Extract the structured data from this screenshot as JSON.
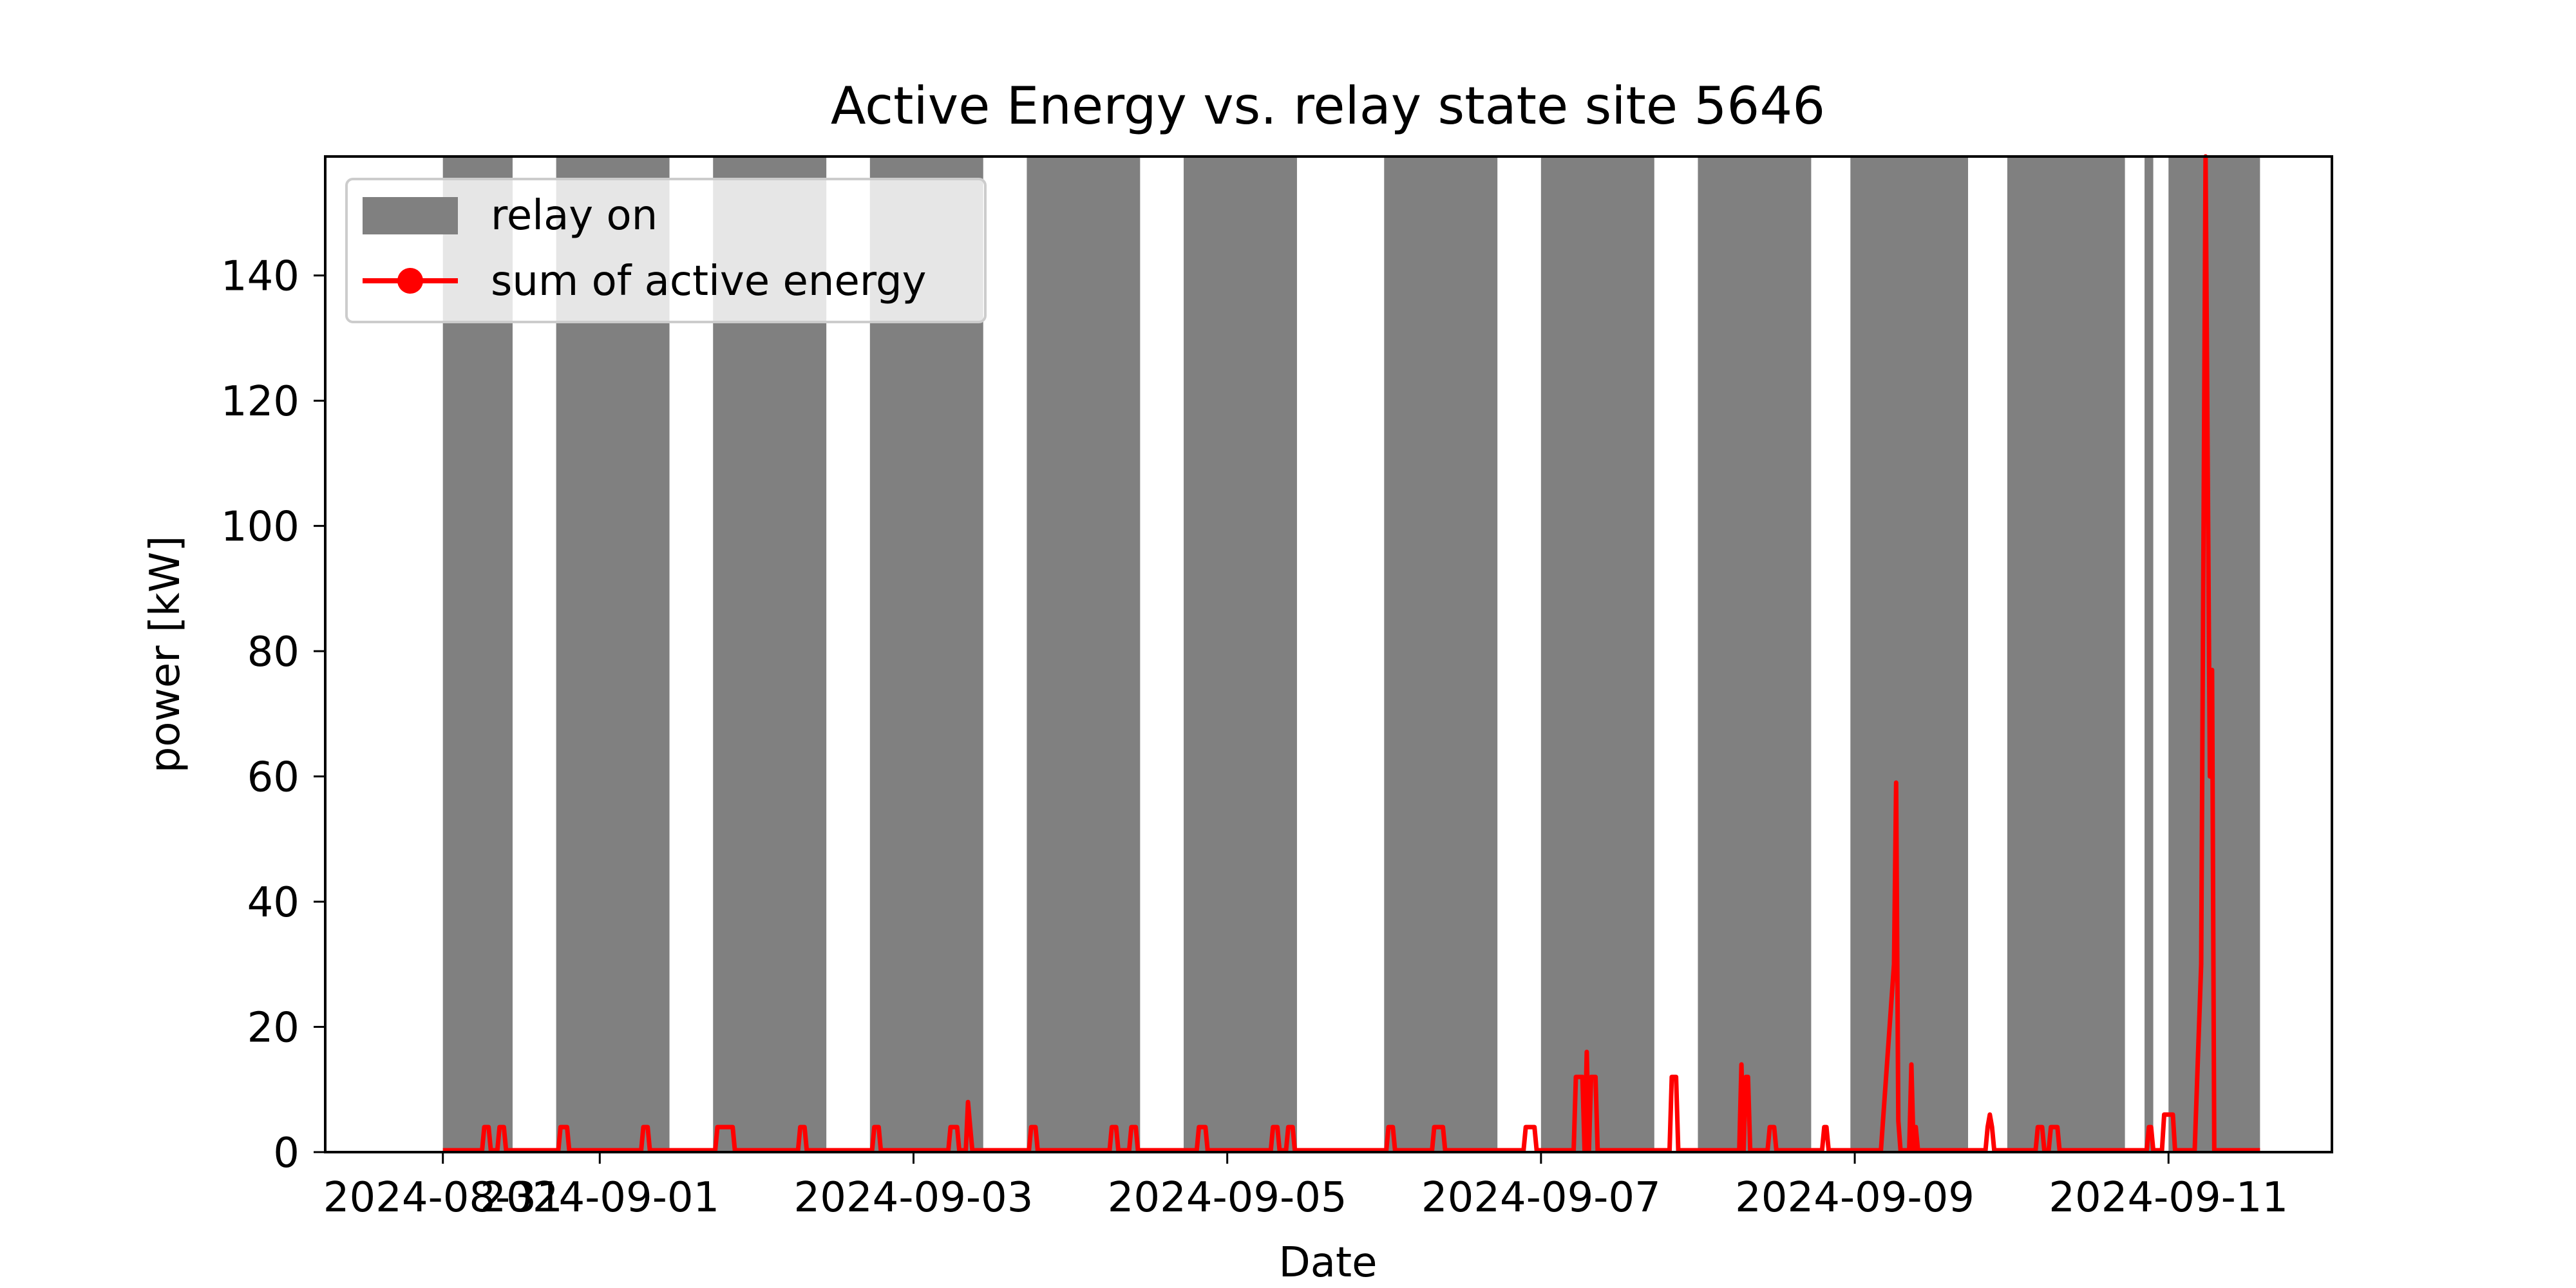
{
  "chart_data": {
    "type": "line",
    "title": "Active Energy vs. relay state site 5646",
    "xlabel": "Date",
    "ylabel": "power [kW]",
    "xlim": [
      "2024-08-30T06:00",
      "2024-09-12T01:00"
    ],
    "ylim": [
      0,
      159
    ],
    "x_ticks": [
      "2024-08-31",
      "2024-09-01",
      "2024-09-03",
      "2024-09-05",
      "2024-09-07",
      "2024-09-09",
      "2024-09-11"
    ],
    "y_ticks": [
      0,
      20,
      40,
      60,
      80,
      100,
      120,
      140
    ],
    "grid": false,
    "legend": {
      "position": "upper left",
      "entries": [
        "relay on",
        "sum of active energy"
      ]
    },
    "colors": {
      "relay_on": "#808080",
      "energy": "#ff0000"
    },
    "relay_on_intervals": [
      [
        "2024-08-31T00:00",
        "2024-08-31T10:40"
      ],
      [
        "2024-08-31T17:20",
        "2024-09-01T10:40"
      ],
      [
        "2024-09-01T17:20",
        "2024-09-02T10:40"
      ],
      [
        "2024-09-02T17:20",
        "2024-09-03T10:40"
      ],
      [
        "2024-09-03T17:20",
        "2024-09-04T10:40"
      ],
      [
        "2024-09-04T17:20",
        "2024-09-05T10:40"
      ],
      [
        "2024-09-06T00:00",
        "2024-09-06T17:20"
      ],
      [
        "2024-09-07T00:00",
        "2024-09-07T17:20"
      ],
      [
        "2024-09-08T00:00",
        "2024-09-08T17:20"
      ],
      [
        "2024-09-08T23:20",
        "2024-09-09T17:20"
      ],
      [
        "2024-09-09T23:20",
        "2024-09-10T17:20"
      ],
      [
        "2024-09-10T20:20",
        "2024-09-10T21:40"
      ],
      [
        "2024-09-11T00:00",
        "2024-09-11T14:00"
      ]
    ],
    "series": [
      {
        "name": "sum of active energy",
        "points": [
          [
            "2024-08-31T00:00",
            0.3
          ],
          [
            "2024-08-31T06:00",
            0.3
          ],
          [
            "2024-08-31T06:20",
            4
          ],
          [
            "2024-08-31T07:00",
            4
          ],
          [
            "2024-08-31T07:20",
            0.3
          ],
          [
            "2024-08-31T08:20",
            0.3
          ],
          [
            "2024-08-31T08:40",
            4
          ],
          [
            "2024-08-31T09:20",
            4
          ],
          [
            "2024-08-31T09:40",
            0.3
          ],
          [
            "2024-08-31T17:40",
            0.3
          ],
          [
            "2024-08-31T18:00",
            4
          ],
          [
            "2024-08-31T19:00",
            4
          ],
          [
            "2024-08-31T19:20",
            0.3
          ],
          [
            "2024-09-01T06:20",
            0.3
          ],
          [
            "2024-09-01T06:40",
            4
          ],
          [
            "2024-09-01T07:20",
            4
          ],
          [
            "2024-09-01T07:40",
            0.3
          ],
          [
            "2024-09-01T17:40",
            0.3
          ],
          [
            "2024-09-01T18:00",
            4
          ],
          [
            "2024-09-01T20:20",
            4
          ],
          [
            "2024-09-01T20:40",
            0.3
          ],
          [
            "2024-09-02T06:20",
            0.3
          ],
          [
            "2024-09-02T06:40",
            4
          ],
          [
            "2024-09-02T07:20",
            4
          ],
          [
            "2024-09-02T07:40",
            0.3
          ],
          [
            "2024-09-02T17:40",
            0.3
          ],
          [
            "2024-09-02T18:00",
            4
          ],
          [
            "2024-09-02T18:40",
            4
          ],
          [
            "2024-09-02T19:00",
            0.3
          ],
          [
            "2024-09-03T05:20",
            0.3
          ],
          [
            "2024-09-03T05:40",
            4
          ],
          [
            "2024-09-03T06:40",
            4
          ],
          [
            "2024-09-03T07:00",
            0.3
          ],
          [
            "2024-09-03T08:00",
            0.3
          ],
          [
            "2024-09-03T08:20",
            8
          ],
          [
            "2024-09-03T08:40",
            4
          ],
          [
            "2024-09-03T09:00",
            0.3
          ],
          [
            "2024-09-03T17:40",
            0.3
          ],
          [
            "2024-09-03T18:00",
            4
          ],
          [
            "2024-09-03T18:40",
            4
          ],
          [
            "2024-09-03T19:00",
            0.3
          ],
          [
            "2024-09-04T06:00",
            0.3
          ],
          [
            "2024-09-04T06:20",
            4
          ],
          [
            "2024-09-04T07:00",
            4
          ],
          [
            "2024-09-04T07:20",
            0.3
          ],
          [
            "2024-09-04T09:00",
            0.3
          ],
          [
            "2024-09-04T09:20",
            4
          ],
          [
            "2024-09-04T10:00",
            4
          ],
          [
            "2024-09-04T10:20",
            0.3
          ],
          [
            "2024-09-04T19:20",
            0.3
          ],
          [
            "2024-09-04T19:40",
            4
          ],
          [
            "2024-09-04T20:40",
            4
          ],
          [
            "2024-09-04T21:00",
            0.3
          ],
          [
            "2024-09-05T06:40",
            0.3
          ],
          [
            "2024-09-05T07:00",
            4
          ],
          [
            "2024-09-05T07:40",
            4
          ],
          [
            "2024-09-05T08:00",
            0.3
          ],
          [
            "2024-09-05T09:00",
            0.3
          ],
          [
            "2024-09-05T09:20",
            4
          ],
          [
            "2024-09-05T10:00",
            4
          ],
          [
            "2024-09-05T10:20",
            0.3
          ],
          [
            "2024-09-06T00:20",
            0.3
          ],
          [
            "2024-09-06T00:40",
            4
          ],
          [
            "2024-09-06T01:20",
            4
          ],
          [
            "2024-09-06T01:40",
            0.3
          ],
          [
            "2024-09-06T07:20",
            0.3
          ],
          [
            "2024-09-06T07:40",
            4
          ],
          [
            "2024-09-06T09:00",
            4
          ],
          [
            "2024-09-06T09:20",
            0.3
          ],
          [
            "2024-09-06T21:20",
            0.3
          ],
          [
            "2024-09-06T21:40",
            4
          ],
          [
            "2024-09-06T23:00",
            4
          ],
          [
            "2024-09-06T23:20",
            0.3
          ],
          [
            "2024-09-07T05:00",
            0.3
          ],
          [
            "2024-09-07T05:20",
            12
          ],
          [
            "2024-09-07T06:20",
            12
          ],
          [
            "2024-09-07T06:40",
            0.3
          ],
          [
            "2024-09-07T07:00",
            16
          ],
          [
            "2024-09-07T07:20",
            0.3
          ],
          [
            "2024-09-07T07:40",
            12
          ],
          [
            "2024-09-07T08:20",
            12
          ],
          [
            "2024-09-07T08:40",
            0.3
          ],
          [
            "2024-09-07T19:40",
            0.3
          ],
          [
            "2024-09-07T20:00",
            12
          ],
          [
            "2024-09-07T20:40",
            12
          ],
          [
            "2024-09-07T21:00",
            0.3
          ],
          [
            "2024-09-08T06:20",
            0.3
          ],
          [
            "2024-09-08T06:40",
            14
          ],
          [
            "2024-09-08T07:00",
            0.3
          ],
          [
            "2024-09-08T07:20",
            12
          ],
          [
            "2024-09-08T07:40",
            12
          ],
          [
            "2024-09-08T08:00",
            0.3
          ],
          [
            "2024-09-08T10:40",
            0.3
          ],
          [
            "2024-09-08T11:00",
            4
          ],
          [
            "2024-09-08T11:40",
            4
          ],
          [
            "2024-09-08T12:00",
            0.3
          ],
          [
            "2024-09-08T19:00",
            0.3
          ],
          [
            "2024-09-08T19:20",
            4
          ],
          [
            "2024-09-08T19:40",
            4
          ],
          [
            "2024-09-08T20:00",
            0.3
          ],
          [
            "2024-09-09T04:00",
            0.3
          ],
          [
            "2024-09-09T06:00",
            30
          ],
          [
            "2024-09-09T06:20",
            59
          ],
          [
            "2024-09-09T06:40",
            5
          ],
          [
            "2024-09-09T07:00",
            0.3
          ],
          [
            "2024-09-09T08:20",
            0.3
          ],
          [
            "2024-09-09T08:40",
            14
          ],
          [
            "2024-09-09T09:00",
            0.3
          ],
          [
            "2024-09-09T09:20",
            4
          ],
          [
            "2024-09-09T09:40",
            0.3
          ],
          [
            "2024-09-09T20:00",
            0.3
          ],
          [
            "2024-09-09T20:20",
            4
          ],
          [
            "2024-09-09T20:40",
            6
          ],
          [
            "2024-09-09T21:00",
            4
          ],
          [
            "2024-09-09T21:20",
            0.3
          ],
          [
            "2024-09-10T03:40",
            0.3
          ],
          [
            "2024-09-10T04:00",
            4
          ],
          [
            "2024-09-10T04:40",
            4
          ],
          [
            "2024-09-10T05:00",
            0.3
          ],
          [
            "2024-09-10T05:40",
            0.3
          ],
          [
            "2024-09-10T06:00",
            4
          ],
          [
            "2024-09-10T07:00",
            4
          ],
          [
            "2024-09-10T07:20",
            0.3
          ],
          [
            "2024-09-10T20:40",
            0.3
          ],
          [
            "2024-09-10T21:00",
            4
          ],
          [
            "2024-09-10T21:20",
            4
          ],
          [
            "2024-09-10T21:40",
            0.3
          ],
          [
            "2024-09-10T23:00",
            0.3
          ],
          [
            "2024-09-10T23:20",
            6
          ],
          [
            "2024-09-11T00:40",
            6
          ],
          [
            "2024-09-11T01:00",
            0.3
          ],
          [
            "2024-09-11T04:00",
            0.3
          ],
          [
            "2024-09-11T05:00",
            30
          ],
          [
            "2024-09-11T05:40",
            159
          ],
          [
            "2024-09-11T06:20",
            60
          ],
          [
            "2024-09-11T06:40",
            77
          ],
          [
            "2024-09-11T07:00",
            0.3
          ],
          [
            "2024-09-11T14:00",
            0.3
          ]
        ]
      }
    ]
  }
}
